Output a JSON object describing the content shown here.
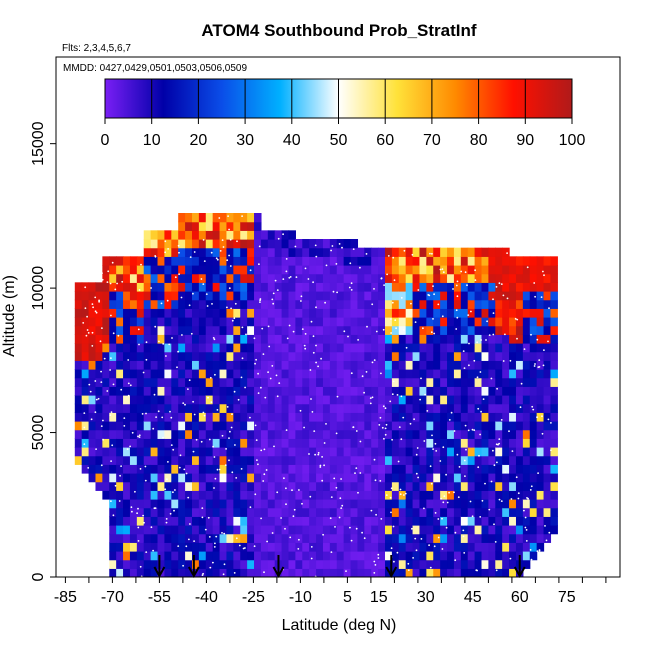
{
  "chart_data": {
    "type": "heatmap",
    "title": "ATOM4 Southbound Prob_StratInf",
    "subtitle_flights": "Flts: 2,3,4,5,6,7",
    "subtitle_dates": "MMDD: 0427,0429,0501,0503,0506,0509",
    "xlabel": "Latitude (deg N)",
    "ylabel": "Altitude (m)",
    "xlim": [
      -88,
      92
    ],
    "ylim": [
      0,
      18000
    ],
    "x_tick_labels": [
      "-85",
      "-70",
      "-55",
      "-40",
      "-25",
      "-10",
      "5",
      "15",
      "30",
      "45",
      "60",
      "75"
    ],
    "x_tick_values": [
      -85,
      -70,
      -55,
      -40,
      -25,
      -10,
      5,
      15,
      30,
      45,
      60,
      75
    ],
    "y_tick_labels": [
      "0",
      "5000",
      "10000",
      "15000"
    ],
    "y_tick_values": [
      0,
      5000,
      10000,
      15000
    ],
    "colorbar": {
      "range": [
        0,
        100
      ],
      "tick_labels": [
        "0",
        "10",
        "20",
        "30",
        "40",
        "50",
        "60",
        "70",
        "80",
        "90",
        "100"
      ],
      "tick_values": [
        0,
        10,
        20,
        30,
        40,
        50,
        60,
        70,
        80,
        90,
        100
      ],
      "colors": [
        "#7a1ff5",
        "#0000a8",
        "#0a4de8",
        "#00b0ff",
        "#ffffff",
        "#ffe23a",
        "#ff8a00",
        "#ff1000",
        "#b01a1a"
      ]
    },
    "flight_profile_markers_lat": [
      -55,
      -44,
      -17,
      19,
      60
    ],
    "field": {
      "description_regions": [
        {
          "lat": [
            -82,
            -68
          ],
          "alt": [
            8500,
            10500
          ],
          "value": 95
        },
        {
          "lat": [
            -72,
            -58
          ],
          "alt": [
            10000,
            11000
          ],
          "value": 90
        },
        {
          "lat": [
            -60,
            -45
          ],
          "alt": [
            11000,
            12500
          ],
          "value": 85
        },
        {
          "lat": [
            -48,
            -25
          ],
          "alt": [
            11500,
            12500
          ],
          "value": 75
        },
        {
          "lat": [
            -25,
            17
          ],
          "alt": [
            0,
            12000
          ],
          "value": 2
        },
        {
          "lat": [
            17,
            55
          ],
          "alt": [
            10000,
            11500
          ],
          "value": 90
        },
        {
          "lat": [
            50,
            60
          ],
          "alt": [
            8000,
            11000
          ],
          "value": 95
        },
        {
          "lat": [
            -82,
            -60
          ],
          "alt": [
            0,
            8000
          ],
          "value": 10
        },
        {
          "lat": [
            25,
            72
          ],
          "alt": [
            0,
            8000
          ],
          "value": 10
        }
      ]
    }
  }
}
